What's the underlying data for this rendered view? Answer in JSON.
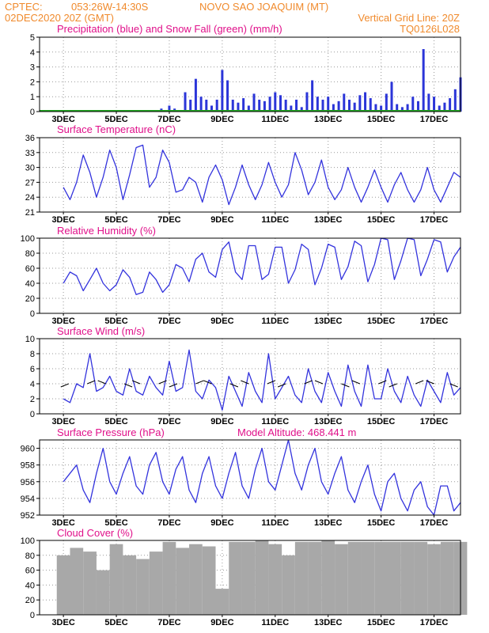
{
  "header": {
    "org": "CPTEC:",
    "coords": "053:26W-14:30S",
    "station": "NOVO SAO JOAQUIM (MT)",
    "date": "02DEC2020 20Z (GMT)",
    "grid_note": "Vertical Grid Line: 20Z",
    "model": "TQ0126L028"
  },
  "x_axis": {
    "tick_labels": [
      "3DEC",
      "5DEC",
      "7DEC",
      "9DEC",
      "11DEC",
      "13DEC",
      "15DEC",
      "17DEC"
    ]
  },
  "colors": {
    "header": "#f08a2c",
    "title": "#e0108a",
    "line": "#3333dd",
    "precip": "#2b35d8",
    "snow": "#22aa22",
    "cloud": "#a8a8a8",
    "grid": "#999999"
  },
  "chart_data": [
    {
      "type": "bar",
      "title": "Precipitation (blue) and Snow Fall (green) (mm/h)",
      "ylim": [
        0,
        5
      ],
      "yticks": [
        "0",
        "1",
        "2",
        "3",
        "4",
        "5"
      ],
      "x_days": [
        0,
        0.5,
        1,
        1.5,
        2,
        2.5,
        3,
        3.3,
        3.5,
        3.7,
        4,
        4.2,
        4.4,
        4.6,
        4.8,
        5,
        5.2,
        5.4,
        5.6,
        5.8,
        6,
        6.2,
        6.4,
        6.6,
        6.8,
        7,
        7.2,
        7.4,
        7.6,
        7.8,
        8,
        8.2,
        8.4,
        8.6,
        8.8,
        9,
        9.2,
        9.4,
        9.6,
        9.8,
        10,
        10.2,
        10.4,
        10.6,
        10.8,
        11,
        11.2,
        11.4,
        11.6,
        11.8,
        12,
        12.2,
        12.4,
        12.6,
        12.8,
        13,
        13.2,
        13.4,
        13.6,
        13.8,
        14,
        14.2,
        14.4,
        14.6,
        14.8,
        15
      ],
      "series": [
        {
          "name": "Precipitation",
          "values": [
            0,
            0,
            0,
            0,
            0,
            0,
            0,
            0.1,
            0,
            0.2,
            0.4,
            0.2,
            0,
            1.3,
            0.8,
            2.2,
            1.0,
            0.8,
            0.4,
            0.8,
            2.8,
            2.1,
            0.8,
            0.6,
            0.9,
            0.4,
            1.2,
            0.8,
            0.7,
            1.0,
            1.3,
            1.1,
            0.8,
            0.4,
            0.8,
            0.3,
            1.3,
            2.1,
            1.0,
            0.8,
            1.0,
            0.5,
            0.7,
            1.2,
            0.8,
            0.6,
            1.1,
            1.3,
            0.9,
            0.5,
            0.4,
            1.2,
            2.0,
            0.5,
            0.3,
            0.5,
            1.0,
            0.7,
            4.2,
            1.2,
            1.0,
            0.4,
            0.6,
            0.9,
            1.5,
            2.3
          ]
        },
        {
          "name": "Snow Fall",
          "values": [
            0,
            0,
            0,
            0,
            0,
            0,
            0,
            0,
            0,
            0,
            0,
            0,
            0,
            0,
            0,
            0,
            0,
            0,
            0,
            0,
            0,
            0,
            0,
            0,
            0,
            0,
            0,
            0,
            0,
            0,
            0,
            0,
            0,
            0,
            0,
            0,
            0,
            0,
            0,
            0,
            0,
            0,
            0,
            0,
            0,
            0,
            0,
            0,
            0,
            0,
            0,
            0,
            0,
            0,
            0,
            0,
            0,
            0,
            0,
            0,
            0,
            0,
            0,
            0,
            0,
            0
          ]
        }
      ]
    },
    {
      "type": "line",
      "title": "Surface Temperature (nC)",
      "ylim": [
        21,
        36
      ],
      "yticks": [
        "21",
        "24",
        "27",
        "30",
        "33",
        "36"
      ],
      "x_days": [
        0,
        0.25,
        0.5,
        0.75,
        1,
        1.25,
        1.5,
        1.75,
        2,
        2.25,
        2.5,
        2.75,
        3,
        3.25,
        3.5,
        3.75,
        4,
        4.25,
        4.5,
        4.75,
        5,
        5.25,
        5.5,
        5.75,
        6,
        6.25,
        6.5,
        6.75,
        7,
        7.25,
        7.5,
        7.75,
        8,
        8.25,
        8.5,
        8.75,
        9,
        9.25,
        9.5,
        9.75,
        10,
        10.25,
        10.5,
        10.75,
        11,
        11.25,
        11.5,
        11.75,
        12,
        12.25,
        12.5,
        12.75,
        13,
        13.25,
        13.5,
        13.75,
        14,
        14.25,
        14.5,
        14.75,
        15
      ],
      "values": [
        26,
        23.5,
        27,
        32.5,
        29,
        24,
        28,
        33.5,
        30,
        23.5,
        28.5,
        34,
        34.5,
        26,
        28,
        33.5,
        31,
        25,
        25.5,
        28,
        27,
        23,
        28,
        30.5,
        27.5,
        22.5,
        26,
        30.5,
        26.5,
        23.5,
        26.5,
        31,
        27,
        24,
        26.5,
        33,
        29.5,
        24.5,
        27,
        31.5,
        26,
        23.5,
        25.5,
        30,
        26,
        23,
        26,
        29.5,
        26,
        23,
        26.5,
        29,
        25.5,
        23,
        25.5,
        30,
        25.5,
        23,
        26,
        29,
        28
      ]
    },
    {
      "type": "line",
      "title": "Relative Humidity (%)",
      "ylim": [
        0,
        100
      ],
      "yticks": [
        "0",
        "20",
        "40",
        "60",
        "80",
        "100"
      ],
      "x_days": [
        0,
        0.25,
        0.5,
        0.75,
        1,
        1.25,
        1.5,
        1.75,
        2,
        2.25,
        2.5,
        2.75,
        3,
        3.25,
        3.5,
        3.75,
        4,
        4.25,
        4.5,
        4.75,
        5,
        5.25,
        5.5,
        5.75,
        6,
        6.25,
        6.5,
        6.75,
        7,
        7.25,
        7.5,
        7.75,
        8,
        8.25,
        8.5,
        8.75,
        9,
        9.25,
        9.5,
        9.75,
        10,
        10.25,
        10.5,
        10.75,
        11,
        11.25,
        11.5,
        11.75,
        12,
        12.25,
        12.5,
        12.75,
        13,
        13.25,
        13.5,
        13.75,
        14,
        14.25,
        14.5,
        14.75,
        15
      ],
      "values": [
        40,
        55,
        50,
        30,
        45,
        60,
        40,
        30,
        38,
        58,
        48,
        25,
        28,
        55,
        45,
        28,
        38,
        65,
        60,
        42,
        72,
        80,
        55,
        48,
        85,
        95,
        55,
        45,
        90,
        90,
        45,
        52,
        88,
        88,
        40,
        58,
        92,
        85,
        38,
        60,
        92,
        88,
        45,
        62,
        96,
        90,
        42,
        65,
        100,
        98,
        45,
        70,
        100,
        98,
        50,
        72,
        98,
        95,
        55,
        75,
        88
      ]
    },
    {
      "type": "line",
      "title": "Surface Wind (m/s)",
      "ylim": [
        0,
        10
      ],
      "yticks": [
        "0",
        "2",
        "4",
        "6",
        "8",
        "10"
      ],
      "x_days": [
        0,
        0.25,
        0.5,
        0.75,
        1,
        1.25,
        1.5,
        1.75,
        2,
        2.25,
        2.5,
        2.75,
        3,
        3.25,
        3.5,
        3.75,
        4,
        4.25,
        4.5,
        4.75,
        5,
        5.25,
        5.5,
        5.75,
        6,
        6.25,
        6.5,
        6.75,
        7,
        7.25,
        7.5,
        7.75,
        8,
        8.25,
        8.5,
        8.75,
        9,
        9.25,
        9.5,
        9.75,
        10,
        10.25,
        10.5,
        10.75,
        11,
        11.25,
        11.5,
        11.75,
        12,
        12.25,
        12.5,
        12.75,
        13,
        13.25,
        13.5,
        13.75,
        14,
        14.25,
        14.5,
        14.75,
        15
      ],
      "values": [
        2,
        1.5,
        4,
        3.5,
        8,
        3,
        3.5,
        5,
        3,
        2.5,
        6,
        3,
        2.5,
        5,
        3.5,
        2.5,
        7,
        3,
        3.5,
        8.5,
        3,
        2,
        4.5,
        3.5,
        0.5,
        5,
        3,
        1,
        5.5,
        3,
        1.5,
        8,
        2,
        3.5,
        5,
        2.5,
        1.5,
        6,
        3,
        1.5,
        5.5,
        3,
        1,
        6.5,
        3,
        1,
        6.5,
        2,
        2,
        6,
        3,
        1.5,
        5,
        2.5,
        1,
        4.5,
        3,
        1.5,
        5.5,
        2.5,
        3.5
      ],
      "arrows": [
        0.2,
        0.9,
        1.6,
        2.3,
        2.9,
        3.6,
        4.3,
        5.0,
        5.6,
        6.3,
        7.0,
        7.7,
        8.4,
        9.1,
        9.8,
        10.5,
        11.2,
        11.9,
        12.6,
        13.3,
        14.0,
        14.6
      ]
    },
    {
      "type": "line",
      "title": "Surface Pressure (hPa)",
      "annotation": "Model Altitude: 468.441 m",
      "ylim": [
        952,
        961
      ],
      "yticks": [
        "952",
        "954",
        "956",
        "958",
        "960"
      ],
      "x_days": [
        0,
        0.25,
        0.5,
        0.75,
        1,
        1.25,
        1.5,
        1.75,
        2,
        2.25,
        2.5,
        2.75,
        3,
        3.25,
        3.5,
        3.75,
        4,
        4.25,
        4.5,
        4.75,
        5,
        5.25,
        5.5,
        5.75,
        6,
        6.25,
        6.5,
        6.75,
        7,
        7.25,
        7.5,
        7.75,
        8,
        8.25,
        8.5,
        8.75,
        9,
        9.25,
        9.5,
        9.75,
        10,
        10.25,
        10.5,
        10.75,
        11,
        11.25,
        11.5,
        11.75,
        12,
        12.25,
        12.5,
        12.75,
        13,
        13.25,
        13.5,
        13.75,
        14,
        14.25,
        14.5,
        14.75,
        15
      ],
      "values": [
        956,
        957,
        958,
        955,
        953.5,
        957,
        960,
        956,
        954.5,
        957,
        959,
        955.5,
        954.5,
        958,
        959.5,
        956,
        954.5,
        957.5,
        959,
        955,
        953.5,
        957,
        959,
        955.5,
        954,
        957,
        959.5,
        955.5,
        954,
        957.5,
        960,
        956,
        955,
        958,
        961,
        957,
        955,
        958,
        960,
        956,
        954.5,
        957,
        959,
        955,
        953.5,
        956,
        958,
        954.5,
        952.5,
        956,
        957,
        954,
        952.5,
        955,
        956,
        953,
        952,
        955.5,
        955.5,
        952.5,
        953.5
      ]
    },
    {
      "type": "bar",
      "title": "Cloud Cover (%)",
      "ylim": [
        0,
        100
      ],
      "yticks": [
        "0",
        "20",
        "40",
        "60",
        "80",
        "100"
      ],
      "x_days": [
        0,
        0.5,
        1,
        1.5,
        2,
        2.5,
        3,
        3.5,
        4,
        4.5,
        5,
        5.5,
        6,
        6.5,
        7,
        7.5,
        8,
        8.5,
        9,
        9.5,
        10,
        10.5,
        11,
        11.5,
        12,
        12.5,
        13,
        13.5,
        14,
        14.5,
        15
      ],
      "values": [
        80,
        90,
        85,
        60,
        95,
        80,
        75,
        85,
        98,
        90,
        95,
        92,
        35,
        98,
        98,
        100,
        95,
        80,
        98,
        98,
        100,
        95,
        98,
        98,
        98,
        98,
        98,
        98,
        95,
        98,
        98
      ]
    }
  ]
}
